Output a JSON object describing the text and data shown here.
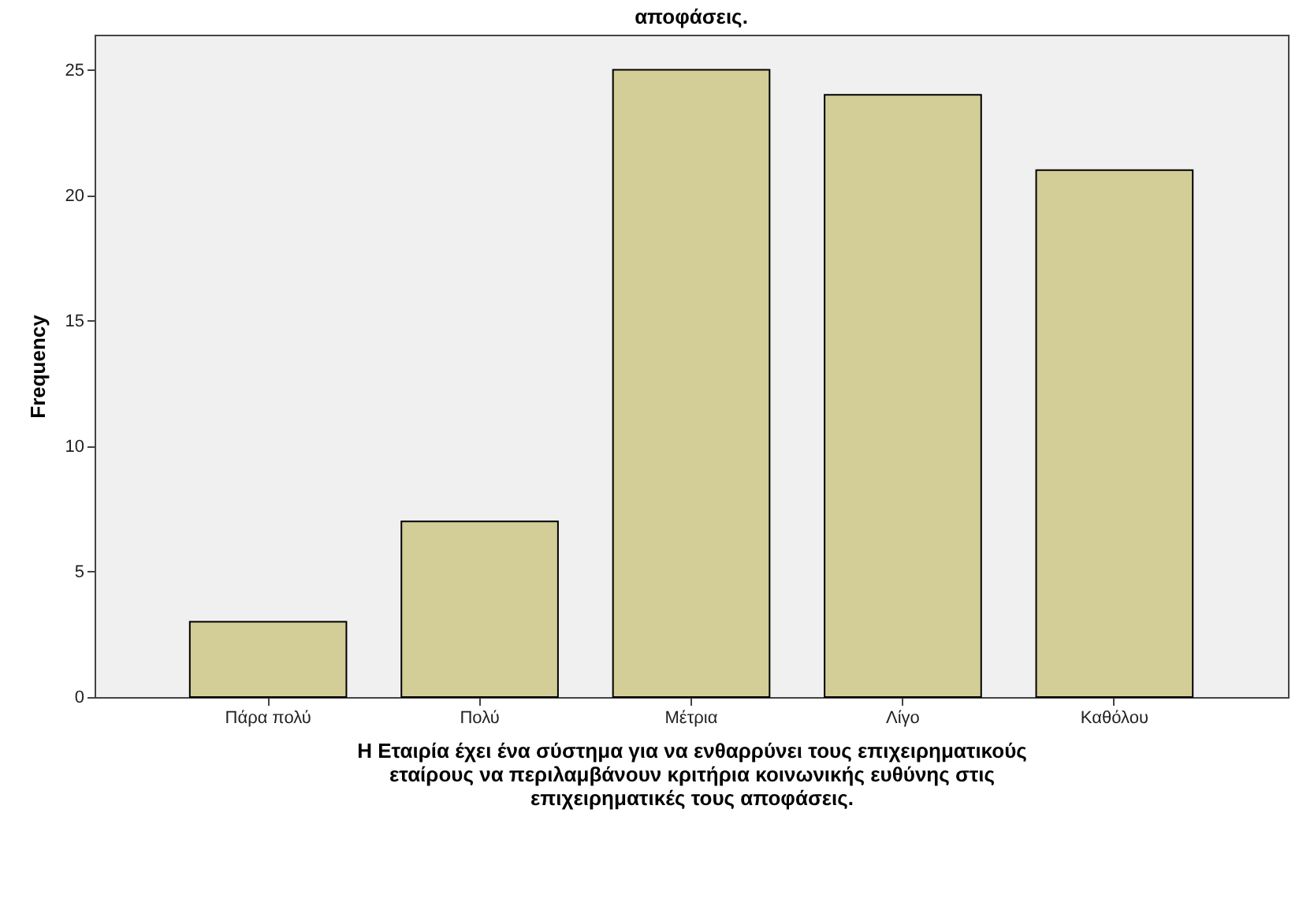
{
  "chart_data": {
    "type": "bar",
    "title": "αποφάσεις.",
    "xlabel": "Η Εταιρία έχει ένα σύστημα για να ενθαρρύνει τους επιχειρηματικούς\nεταίρους να περιλαμβάνουν κριτήρια κοινωνικής ευθύνης στις\nεπιχειρηματικές τους αποφάσεις.",
    "ylabel": "Frequency",
    "categories": [
      "Πάρα πολύ",
      "Πολύ",
      "Μέτρια",
      "Λίγο",
      "Καθόλου"
    ],
    "values": [
      3,
      7,
      25,
      24,
      21
    ],
    "color": "#d3ce97",
    "ylim": [
      0,
      26.4
    ],
    "yticks": [
      0,
      5,
      10,
      15,
      20,
      25
    ],
    "grid": false,
    "legend": false
  }
}
